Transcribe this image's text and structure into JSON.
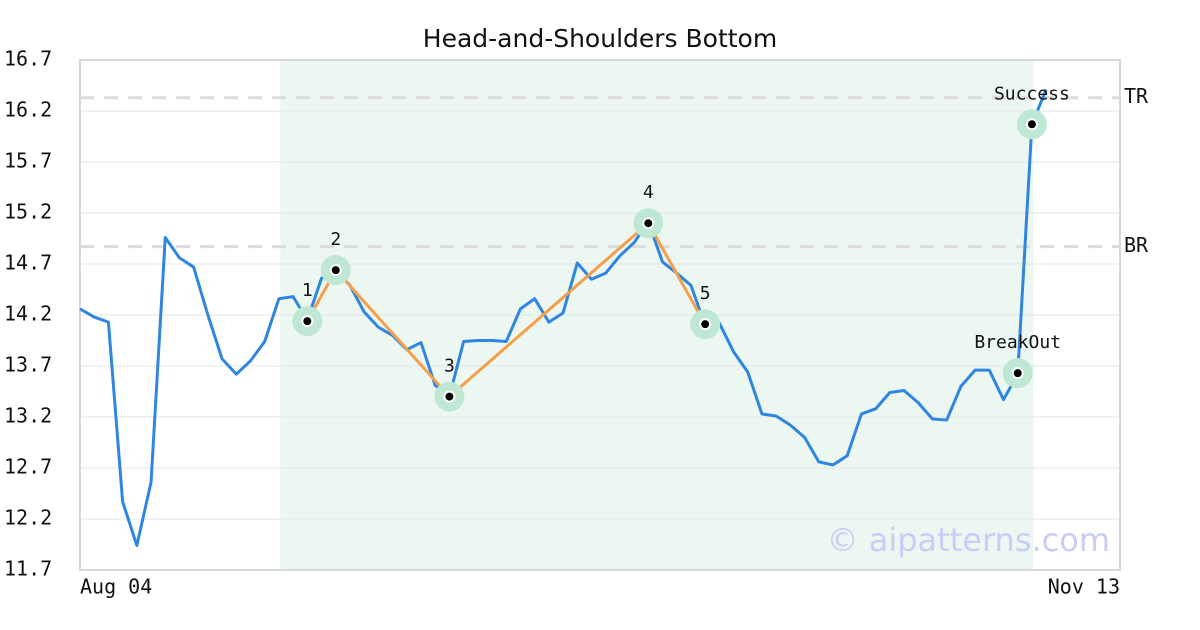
{
  "chart_data": {
    "type": "line",
    "title": "Head-and-Shoulders Bottom",
    "x": [
      0,
      1,
      2,
      3,
      4,
      5,
      6,
      7,
      8,
      9,
      10,
      11,
      12,
      13,
      14,
      15,
      16,
      17,
      18,
      19,
      20,
      21,
      22,
      23,
      24,
      25,
      26,
      27,
      28,
      29,
      30,
      31,
      32,
      33,
      34,
      35,
      36,
      37,
      38,
      39,
      40,
      41,
      42,
      43,
      44,
      45,
      46,
      47,
      48,
      49,
      50,
      51,
      52,
      53,
      54,
      55,
      56,
      57,
      58,
      59,
      60,
      61,
      62,
      63,
      64,
      65,
      66,
      67,
      68
    ],
    "values": [
      14.26,
      14.18,
      14.13,
      12.37,
      11.94,
      12.56,
      14.96,
      14.76,
      14.67,
      14.2,
      13.77,
      13.62,
      13.75,
      13.94,
      14.36,
      14.38,
      14.15,
      14.56,
      14.64,
      14.49,
      14.23,
      14.08,
      14.0,
      13.86,
      13.93,
      13.51,
      13.4,
      13.94,
      13.95,
      13.95,
      13.94,
      14.26,
      14.36,
      14.13,
      14.22,
      14.71,
      14.55,
      14.61,
      14.78,
      14.91,
      15.11,
      14.72,
      14.61,
      14.49,
      14.1,
      14.12,
      13.84,
      13.64,
      13.23,
      13.21,
      13.12,
      13.0,
      12.76,
      12.73,
      12.82,
      13.23,
      13.28,
      13.44,
      13.46,
      13.34,
      13.18,
      13.17,
      13.5,
      13.66,
      13.66,
      13.37,
      13.62,
      16.07,
      16.41
    ],
    "color": "#2f86e0",
    "xlim": [
      0,
      73.2
    ],
    "xticks": [
      {
        "value": 0,
        "label": "Aug 04"
      },
      {
        "value": 73.2,
        "label": "Nov 13"
      }
    ],
    "ylim": [
      11.7,
      16.7
    ],
    "yticks": [
      11.7,
      12.2,
      12.7,
      13.2,
      13.7,
      14.2,
      14.7,
      15.2,
      15.7,
      16.2,
      16.7
    ],
    "grid": true,
    "shade": [
      14.1,
      67.1
    ],
    "shade_color": "#edf7f2",
    "pattern_color": "#f4a04a",
    "marker_color": "#bfe8d4",
    "levels": [
      {
        "label": "TR",
        "value": 16.33
      },
      {
        "label": "BR",
        "value": 14.87
      }
    ],
    "points": [
      {
        "label": "1",
        "x": 16,
        "value": 14.14
      },
      {
        "label": "2",
        "x": 18,
        "value": 14.64
      },
      {
        "label": "3",
        "x": 26,
        "value": 13.4
      },
      {
        "label": "4",
        "x": 40,
        "value": 15.1
      },
      {
        "label": "5",
        "x": 44,
        "value": 14.11
      },
      {
        "label": "BreakOut",
        "x": 66,
        "value": 13.63
      },
      {
        "label": "Success",
        "x": 67,
        "value": 16.07
      }
    ],
    "pattern_points": [
      0,
      1,
      2,
      3,
      4
    ],
    "watermark": "© aipatterns.com"
  }
}
